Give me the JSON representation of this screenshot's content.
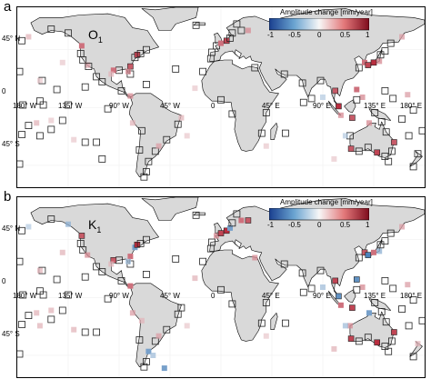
{
  "panels": [
    {
      "letter": "a",
      "constituent": "O",
      "constituent_sub": "1",
      "colorbar": {
        "title": "Amplitude change [mm/year]",
        "ticks": [
          "-1",
          "-0.5",
          "0",
          "0.5",
          "1"
        ]
      }
    },
    {
      "letter": "b",
      "constituent": "K",
      "constituent_sub": "1",
      "colorbar": {
        "title": "Amplitude change [mm/year]",
        "ticks": [
          "-1",
          "-0.5",
          "0",
          "0.5",
          "1"
        ]
      }
    }
  ],
  "axes": {
    "lat_ticks": [
      "45° N",
      "0",
      "45° S"
    ],
    "lon_ticks": [
      "180° W",
      "135° W",
      "90° W",
      "45° W",
      "0",
      "45° E",
      "90° E",
      "135° E",
      "180° E"
    ]
  },
  "colors": {
    "land": "#d9d9d9",
    "coast": "#000000",
    "negative": "#2166ac",
    "positive": "#b2182b",
    "neutral": "#f7f7f7"
  },
  "legend_scale": {
    "min": -1,
    "max": 1
  }
}
